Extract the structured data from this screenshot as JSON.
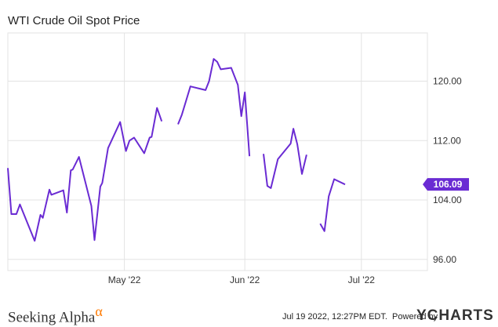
{
  "title": "WTI Crude Oil Spot Price",
  "footer": {
    "brand": "Seeking Alpha",
    "brand_mark": "α",
    "timestamp": "Jul 19 2022, 12:27PM EDT.",
    "powered_by": "Powered by",
    "provider": "YCHARTS"
  },
  "colors": {
    "line": "#6a2bd3",
    "grid": "#e3e3e3",
    "axis_text": "#333333",
    "label_bg": "#6a2bd3"
  },
  "chart_data": {
    "type": "line",
    "title": "WTI Crude Oil Spot Price",
    "xlabel": "",
    "ylabel": "",
    "x_ticks": [
      {
        "label": "May '22",
        "day": 30
      },
      {
        "label": "Jun '22",
        "day": 61
      },
      {
        "label": "Jul '22",
        "day": 91
      }
    ],
    "y_ticks": [
      "96.00",
      "104.00",
      "112.00",
      "120.00"
    ],
    "y_tick_values": [
      96,
      104,
      112,
      120
    ],
    "ylim": [
      94.5,
      126.5
    ],
    "xlim": [
      0,
      108
    ],
    "grid": true,
    "last_value_label": "106.09",
    "series": [
      {
        "values_by_day": [
          [
            0,
            108.3
          ],
          [
            0.9,
            102.1
          ],
          [
            2.2,
            102.1
          ],
          [
            3.1,
            103.4
          ],
          [
            6.9,
            98.5
          ],
          [
            8.4,
            102.0
          ],
          [
            9.0,
            101.6
          ],
          [
            10.7,
            105.4
          ],
          [
            11.2,
            104.7
          ],
          [
            14.3,
            105.3
          ],
          [
            15.2,
            102.3
          ],
          [
            16.2,
            108.0
          ],
          [
            16.7,
            108.1
          ],
          [
            18.3,
            109.8
          ],
          [
            21.5,
            103.2
          ],
          [
            22.3,
            98.6
          ],
          [
            23.8,
            105.8
          ],
          [
            24.3,
            106.3
          ],
          [
            25.8,
            111.0
          ],
          [
            28.9,
            114.5
          ],
          [
            30.4,
            110.6
          ],
          [
            31.3,
            112.0
          ],
          [
            32.5,
            112.4
          ],
          [
            35.1,
            110.3
          ],
          [
            36.5,
            112.4
          ],
          [
            37.0,
            112.5
          ],
          [
            38.4,
            116.4
          ],
          [
            39.6,
            114.6
          ],
          null,
          [
            43.8,
            114.2
          ],
          [
            44.8,
            115.5
          ],
          [
            47.0,
            119.3
          ],
          [
            50.9,
            118.8
          ],
          [
            51.8,
            120.0
          ],
          [
            53.0,
            123.0
          ],
          [
            53.9,
            122.6
          ],
          [
            54.8,
            121.6
          ],
          [
            57.5,
            121.8
          ],
          [
            59.2,
            119.5
          ],
          [
            60.1,
            115.3
          ],
          [
            61.0,
            118.5
          ],
          [
            62.2,
            109.9
          ],
          null,
          [
            65.8,
            110.2
          ],
          [
            66.8,
            105.9
          ],
          [
            67.7,
            105.6
          ],
          [
            69.5,
            109.5
          ],
          [
            72.8,
            111.6
          ],
          [
            73.5,
            113.6
          ],
          [
            74.5,
            111.5
          ],
          [
            75.7,
            107.5
          ],
          [
            76.9,
            110.1
          ],
          null,
          [
            80.4,
            100.8
          ],
          [
            81.5,
            99.8
          ],
          [
            82.6,
            104.5
          ],
          [
            84.0,
            106.8
          ],
          [
            86.8,
            106.1
          ]
        ]
      }
    ]
  }
}
